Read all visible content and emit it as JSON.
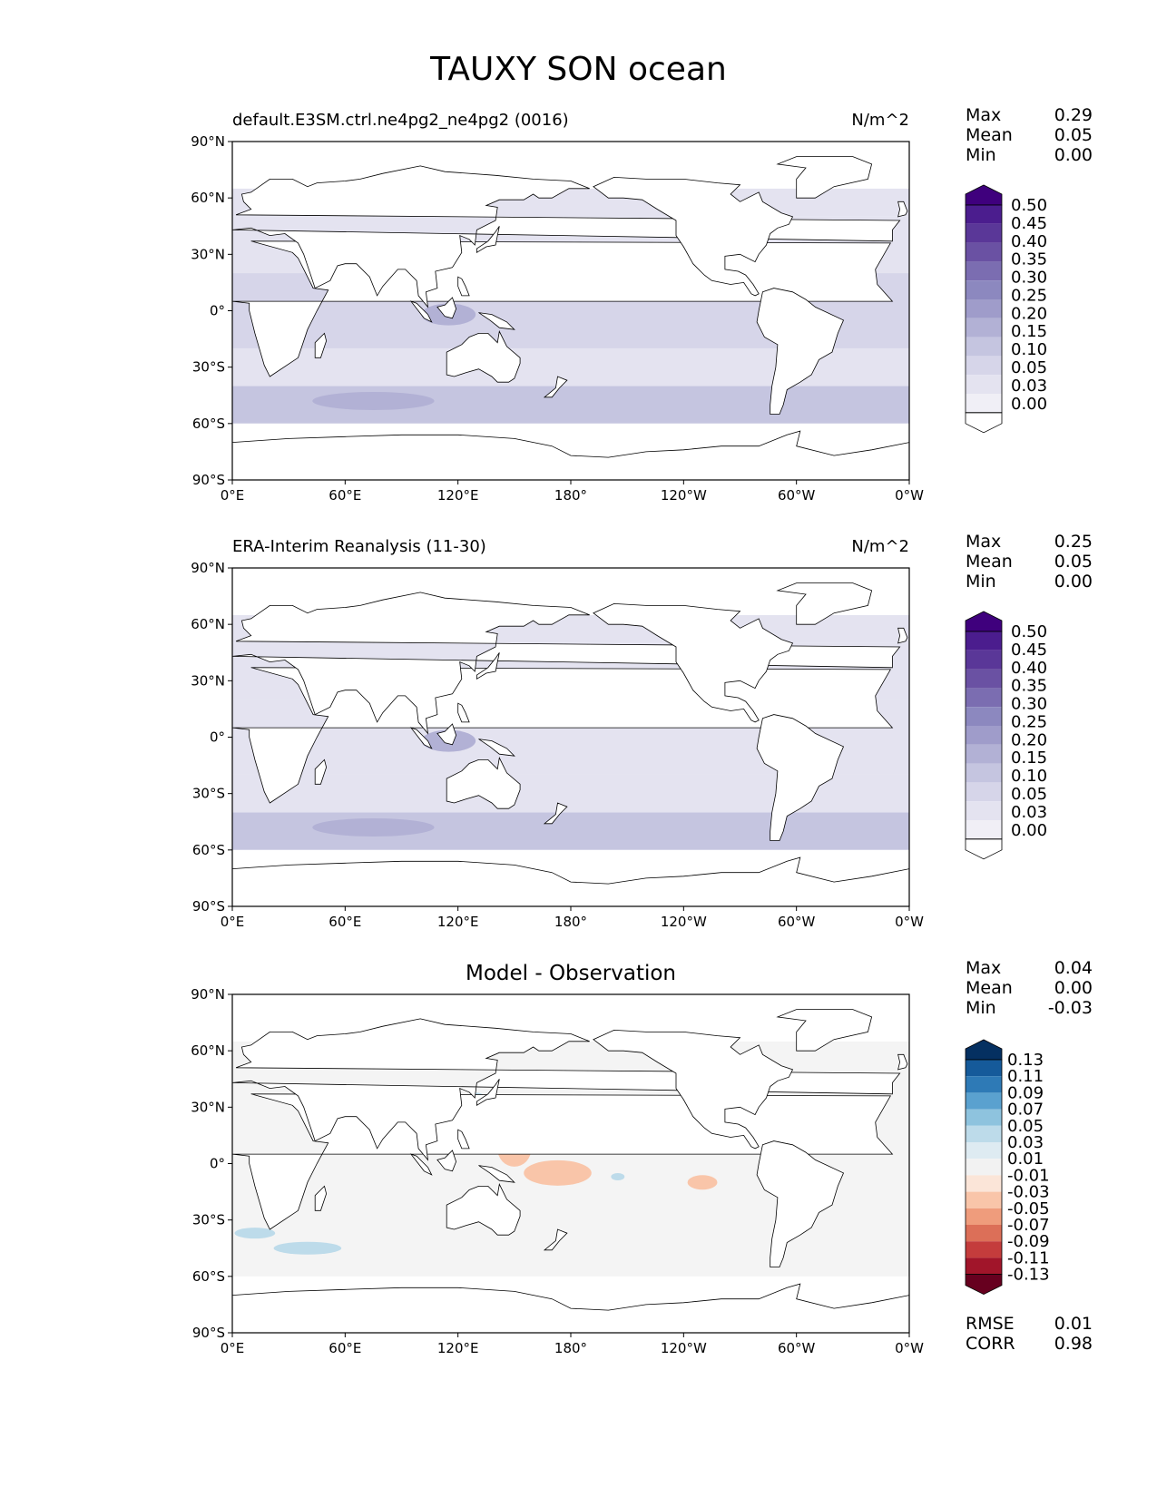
{
  "figure_title": "TAUXY SON ocean",
  "colors": {
    "purple_scale": [
      "#fcfbfd",
      "#f0eff6",
      "#e4e3f0",
      "#d6d5e9",
      "#c5c5e0",
      "#b2b1d5",
      "#9f9cca",
      "#8c88bf",
      "#7b6db1",
      "#6a51a3",
      "#5a3798",
      "#4b1d8e",
      "#3f007d"
    ],
    "diverging_scale": [
      "#67001f",
      "#a1152a",
      "#c43c3c",
      "#dc6f58",
      "#ef9c7c",
      "#f9c5a9",
      "#fbe5d8",
      "#f2f2f2",
      "#deebf2",
      "#bddbea",
      "#8ec3de",
      "#5aa1cf",
      "#2e7ab6",
      "#155a9a",
      "#053061"
    ],
    "land_outline": "#000000",
    "ocean_fill_purple": "#e6e5f1",
    "ocean_fill_diff": "#f4f4f4"
  },
  "chart_data": [
    {
      "type": "heatmap",
      "panel": "test",
      "title_left": "default.E3SM.ctrl.ne4pg2_ne4pg2 (0016)",
      "title_right": "N/m^2",
      "xticks": [
        "0°E",
        "60°E",
        "120°E",
        "180°",
        "120°W",
        "60°W",
        "0°W"
      ],
      "yticks": [
        "90°N",
        "60°N",
        "30°N",
        "0°",
        "30°S",
        "60°S",
        "90°S"
      ],
      "xlim": [
        0,
        360
      ],
      "ylim": [
        -90,
        90
      ],
      "stats": [
        {
          "label": "Max",
          "value": "0.29"
        },
        {
          "label": "Mean",
          "value": "0.05"
        },
        {
          "label": "Min",
          "value": "0.00"
        }
      ],
      "colorbar_levels": [
        "0.00",
        "0.03",
        "0.05",
        "0.10",
        "0.15",
        "0.20",
        "0.25",
        "0.30",
        "0.35",
        "0.40",
        "0.45",
        "0.50"
      ],
      "field_bands": [
        {
          "lat": [
            -60,
            -40
          ],
          "value": 0.17
        },
        {
          "lat": [
            -40,
            -20
          ],
          "value": 0.08
        },
        {
          "lat": [
            -20,
            20
          ],
          "value": 0.1
        },
        {
          "lat": [
            20,
            50
          ],
          "value": 0.07
        },
        {
          "lat": [
            50,
            65
          ],
          "value": 0.05
        }
      ]
    },
    {
      "type": "heatmap",
      "panel": "reference",
      "title_left": "ERA-Interim Reanalysis (11-30)",
      "title_right": "N/m^2",
      "xticks": [
        "0°E",
        "60°E",
        "120°E",
        "180°",
        "120°W",
        "60°W",
        "0°W"
      ],
      "yticks": [
        "90°N",
        "60°N",
        "30°N",
        "0°",
        "30°S",
        "60°S",
        "90°S"
      ],
      "xlim": [
        0,
        360
      ],
      "ylim": [
        -90,
        90
      ],
      "stats": [
        {
          "label": "Max",
          "value": "0.25"
        },
        {
          "label": "Mean",
          "value": "0.05"
        },
        {
          "label": "Min",
          "value": "0.00"
        }
      ],
      "colorbar_levels": [
        "0.00",
        "0.03",
        "0.05",
        "0.10",
        "0.15",
        "0.20",
        "0.25",
        "0.30",
        "0.35",
        "0.40",
        "0.45",
        "0.50"
      ],
      "field_bands": [
        {
          "lat": [
            -60,
            -40
          ],
          "value": 0.15
        },
        {
          "lat": [
            -40,
            -20
          ],
          "value": 0.08
        },
        {
          "lat": [
            -20,
            20
          ],
          "value": 0.09
        },
        {
          "lat": [
            20,
            50
          ],
          "value": 0.07
        },
        {
          "lat": [
            50,
            65
          ],
          "value": 0.05
        }
      ]
    },
    {
      "type": "heatmap",
      "panel": "difference",
      "title_center": "Model - Observation",
      "xticks": [
        "0°E",
        "60°E",
        "120°E",
        "180°",
        "120°W",
        "60°W",
        "0°W"
      ],
      "yticks": [
        "90°N",
        "60°N",
        "30°N",
        "0°",
        "30°S",
        "60°S",
        "90°S"
      ],
      "xlim": [
        0,
        360
      ],
      "ylim": [
        -90,
        90
      ],
      "stats": [
        {
          "label": "Max",
          "value": "0.04"
        },
        {
          "label": "Mean",
          "value": "0.00"
        },
        {
          "label": "Min",
          "value": "-0.03"
        }
      ],
      "colorbar_levels": [
        "-0.13",
        "-0.11",
        "-0.09",
        "-0.07",
        "-0.05",
        "-0.03",
        "-0.01",
        "0.01",
        "0.03",
        "0.05",
        "0.07",
        "0.09",
        "0.11",
        "0.13"
      ],
      "metrics": [
        {
          "label": "RMSE",
          "value": "0.01"
        },
        {
          "label": "CORR",
          "value": "0.98"
        }
      ]
    }
  ]
}
